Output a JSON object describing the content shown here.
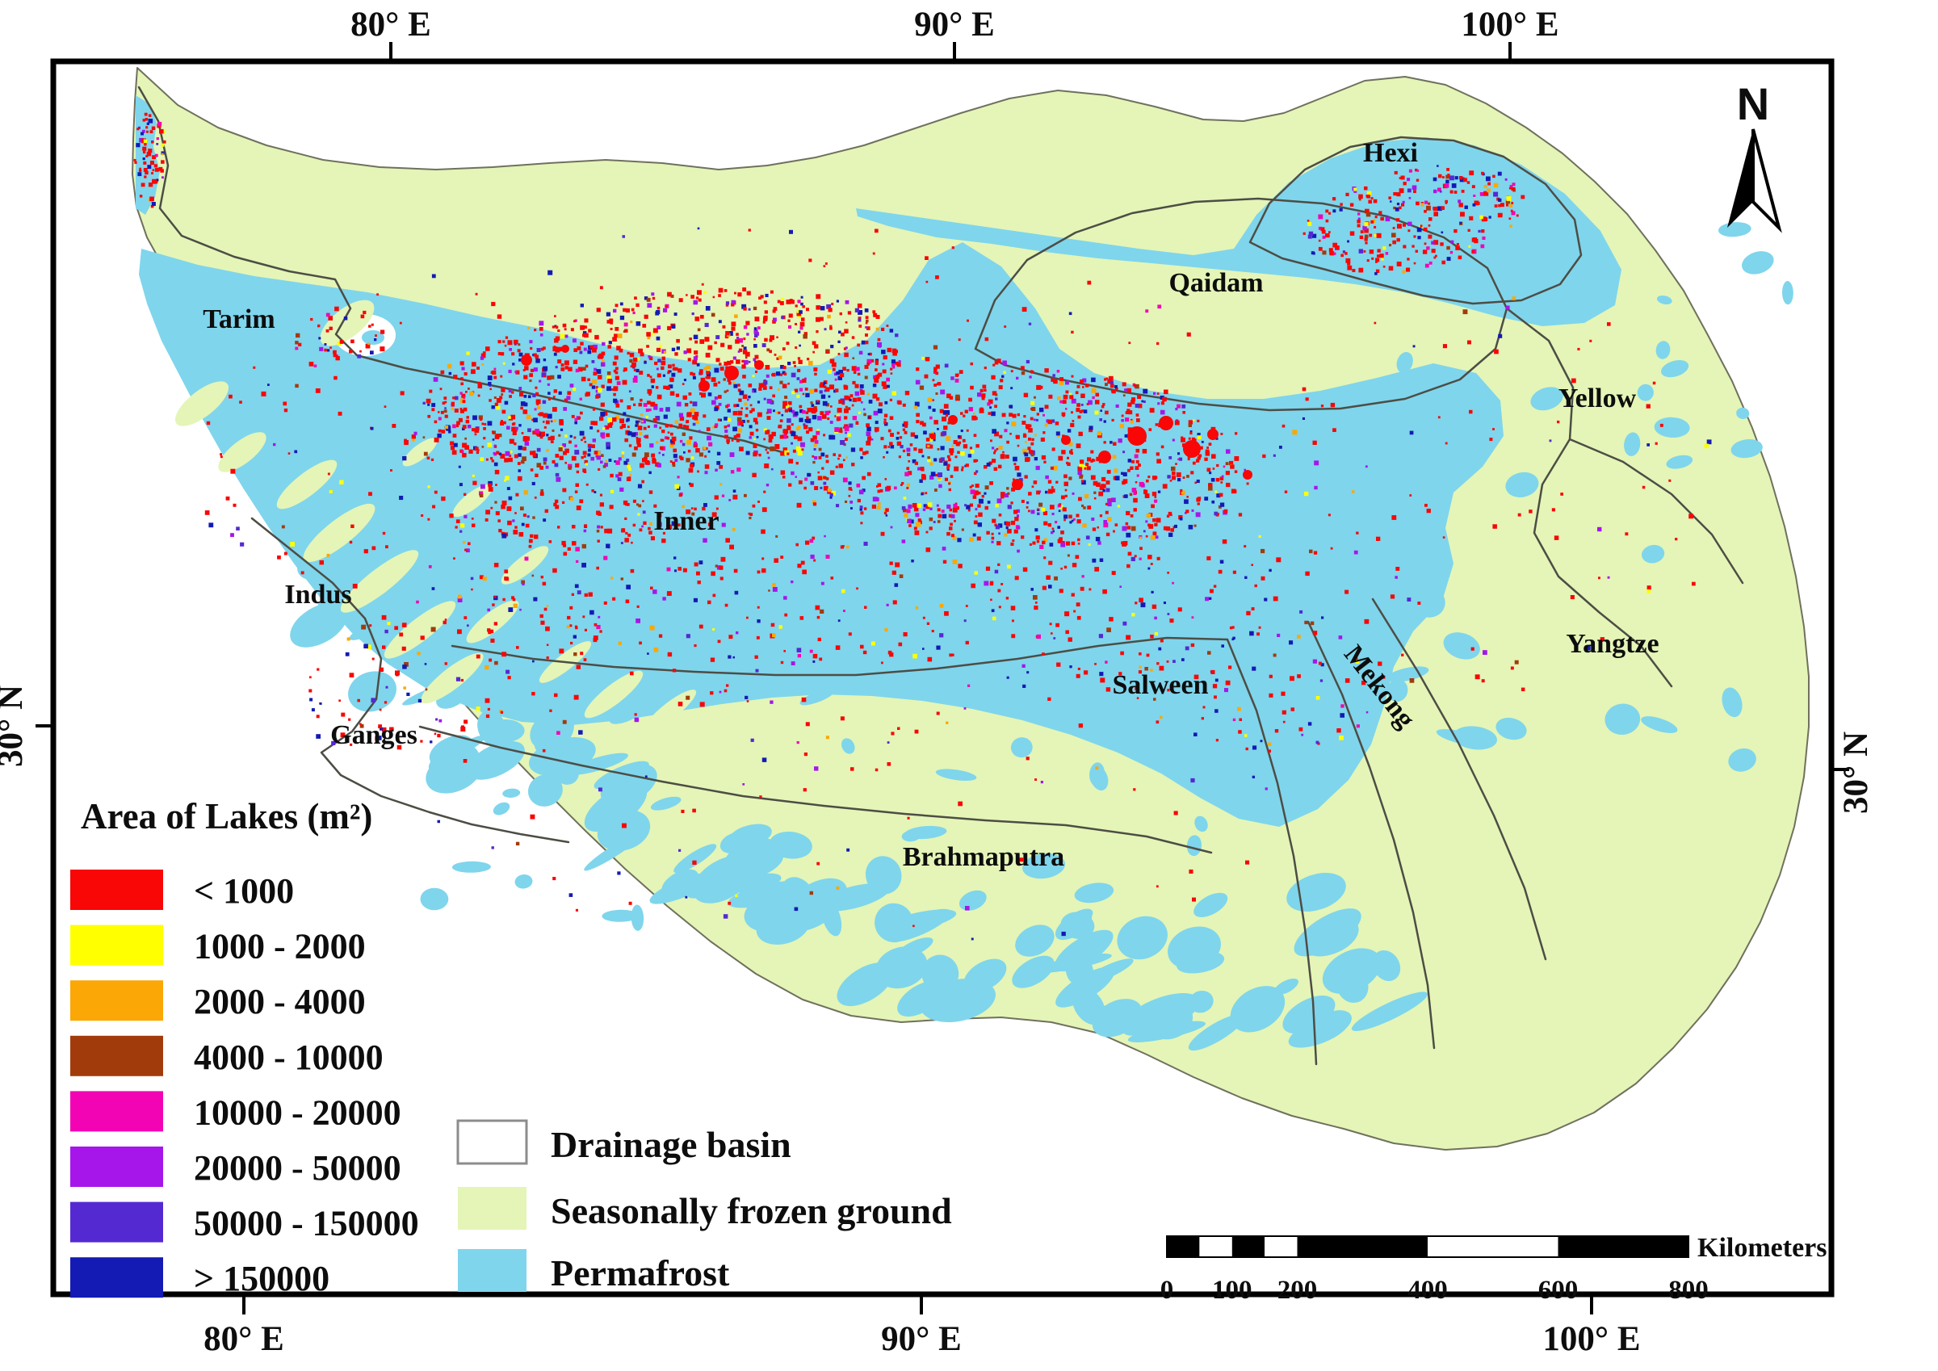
{
  "axes": {
    "top": [
      "80° E",
      "90° E",
      "100° E"
    ],
    "bottom": [
      "80° E",
      "90° E",
      "100° E"
    ],
    "left": "30° N",
    "right": "30° N"
  },
  "north_arrow": {
    "label": "N"
  },
  "map_labels": {
    "basins": [
      {
        "name": "Tarim"
      },
      {
        "name": "Hexi"
      },
      {
        "name": "Qaidam"
      },
      {
        "name": "Yellow"
      },
      {
        "name": "Inner"
      },
      {
        "name": "Indus"
      },
      {
        "name": "Ganges"
      },
      {
        "name": "Salween"
      },
      {
        "name": "Mekong"
      },
      {
        "name": "Yangtze"
      },
      {
        "name": "Brahmaputra"
      }
    ]
  },
  "lake_legend": {
    "title": "Area of Lakes (m²)",
    "classes": [
      {
        "label": "< 1000",
        "color": "#F90606"
      },
      {
        "label": "1000 - 2000",
        "color": "#FFFF00"
      },
      {
        "label": "2000 - 4000",
        "color": "#FBA705"
      },
      {
        "label": "4000 - 10000",
        "color": "#A23B0B"
      },
      {
        "label": "10000 - 20000",
        "color": "#F203B4"
      },
      {
        "label": "20000 - 50000",
        "color": "#A616EA"
      },
      {
        "label": "50000 - 150000",
        "color": "#5529D2"
      },
      {
        "label": "> 150000",
        "color": "#141AB4"
      }
    ]
  },
  "ground_legend": {
    "items": [
      {
        "label": "Drainage basin",
        "color": "#FFFFFF",
        "border": "#8C8C8C"
      },
      {
        "label": "Seasonally frozen ground",
        "color": "#E4F5B7"
      },
      {
        "label": "Permafrost",
        "color": "#7FD5EC"
      }
    ]
  },
  "scalebar": {
    "labels": [
      "0",
      "100",
      "200",
      "400",
      "600",
      "800"
    ],
    "unit": "Kilometers"
  }
}
